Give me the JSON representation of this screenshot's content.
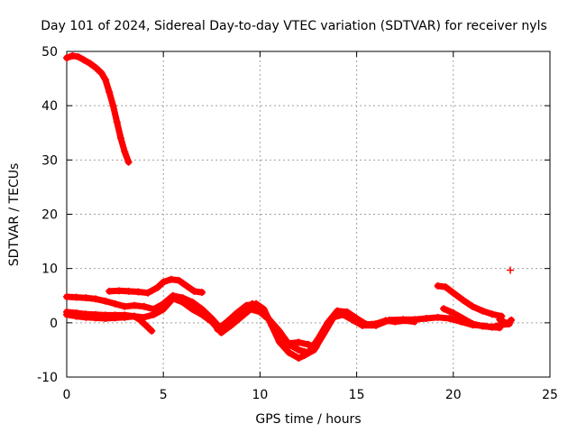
{
  "chart_data": {
    "type": "scatter",
    "title": "Day 101 of 2024, Sidereal Day-to-day VTEC variation (SDTVAR) for receiver nyls",
    "xlabel": "GPS time / hours",
    "ylabel": "SDTVAR / TECUs",
    "xlim": [
      0,
      25
    ],
    "ylim": [
      -10,
      50
    ],
    "xticks": [
      "0",
      "5",
      "10",
      "15",
      "20",
      "25"
    ],
    "yticks": [
      "-10",
      "0",
      "10",
      "20",
      "30",
      "40",
      "50"
    ],
    "grid": true,
    "marker": "+",
    "color": "#ff0000",
    "series": [
      {
        "name": "high-arc",
        "x": [
          0.0,
          0.3,
          0.6,
          0.9,
          1.2,
          1.5,
          1.8,
          2.0,
          2.2,
          2.4,
          2.6,
          2.8,
          3.0,
          3.2
        ],
        "y": [
          48.8,
          49.2,
          49.0,
          48.4,
          47.8,
          47.0,
          46.0,
          44.8,
          42.5,
          40.0,
          37.0,
          34.0,
          31.5,
          29.6
        ]
      },
      {
        "name": "track-a",
        "x": [
          0.0,
          0.5,
          1.0,
          1.5,
          2.0,
          2.5,
          3.0,
          3.5,
          4.0,
          4.5,
          5.0,
          5.5,
          6.0,
          6.5,
          7.0,
          7.5,
          8.0
        ],
        "y": [
          4.8,
          4.7,
          4.6,
          4.4,
          4.0,
          3.5,
          3.0,
          3.2,
          3.0,
          2.5,
          3.5,
          5.0,
          4.6,
          3.8,
          2.5,
          0.8,
          -1.2
        ]
      },
      {
        "name": "track-b",
        "x": [
          2.2,
          2.7,
          3.2,
          3.7,
          4.2,
          4.7,
          5.0,
          5.4,
          5.8,
          6.2,
          6.6,
          7.0
        ],
        "y": [
          5.8,
          5.9,
          5.8,
          5.7,
          5.5,
          6.5,
          7.5,
          8.0,
          7.8,
          6.8,
          5.8,
          5.6
        ]
      },
      {
        "name": "track-c",
        "x": [
          0.0,
          0.5,
          1.0,
          1.5,
          2.0,
          2.5,
          3.0,
          3.5,
          3.8,
          4.1,
          4.4
        ],
        "y": [
          2.0,
          1.8,
          1.6,
          1.5,
          1.4,
          1.4,
          1.4,
          1.2,
          0.5,
          -0.5,
          -1.5
        ]
      },
      {
        "name": "track-d",
        "x": [
          0.0,
          0.5,
          1.0,
          1.5,
          2.0,
          2.5,
          3.0,
          3.5,
          4.0,
          4.5,
          5.0,
          5.5,
          6.0,
          6.5,
          7.0,
          7.5,
          8.0
        ],
        "y": [
          1.5,
          1.2,
          1.0,
          0.9,
          0.8,
          0.9,
          1.0,
          1.2,
          1.0,
          1.5,
          2.5,
          4.5,
          3.8,
          2.5,
          1.5,
          0.2,
          -1.8
        ]
      },
      {
        "name": "track-e",
        "x": [
          7.8,
          8.3,
          8.8,
          9.3,
          9.8,
          10.2,
          10.6,
          11.0,
          11.5,
          12.0,
          12.3,
          12.8,
          13.3,
          13.8,
          14.3,
          14.8,
          15.3,
          16.0,
          16.7,
          17.4,
          18.0,
          18.6,
          19.2,
          19.8,
          20.4,
          21.0,
          21.6,
          22.0,
          22.5,
          22.9
        ],
        "y": [
          -1.2,
          0.2,
          1.8,
          3.2,
          3.5,
          2.5,
          -0.5,
          -3.5,
          -5.5,
          -6.5,
          -6.0,
          -5.0,
          -2.0,
          1.0,
          1.5,
          0.5,
          -0.5,
          -0.5,
          0.5,
          0.6,
          0.6,
          0.8,
          1.0,
          0.8,
          0.2,
          -0.4,
          -0.6,
          -0.8,
          -0.4,
          -0.2
        ]
      },
      {
        "name": "track-f",
        "x": [
          8.0,
          8.5,
          9.0,
          9.5,
          10.0,
          10.5,
          11.0,
          11.5,
          12.0,
          12.5,
          13.0,
          13.5,
          14.0,
          14.5,
          15.0,
          15.5,
          16.0,
          16.5,
          17.0,
          17.5,
          18.0
        ],
        "y": [
          -1.8,
          -0.5,
          1.0,
          2.5,
          2.0,
          0.5,
          -1.5,
          -4.0,
          -5.0,
          -5.5,
          -3.0,
          0.0,
          2.2,
          2.0,
          0.8,
          -0.3,
          -0.2,
          0.4,
          0.2,
          0.4,
          0.2
        ]
      },
      {
        "name": "track-g",
        "x": [
          9.6,
          10.0,
          10.4
        ],
        "y": [
          3.5,
          2.8,
          1.0
        ]
      },
      {
        "name": "track-h",
        "x": [
          11.5,
          12.0,
          12.5,
          12.9
        ],
        "y": [
          -3.8,
          -3.6,
          -4.0,
          -4.5
        ]
      },
      {
        "name": "track-i",
        "x": [
          19.2,
          19.6,
          20.0,
          20.5,
          21.0,
          21.5,
          22.0,
          22.5
        ],
        "y": [
          6.8,
          6.6,
          5.5,
          4.2,
          3.0,
          2.2,
          1.6,
          1.2
        ]
      },
      {
        "name": "track-j",
        "x": [
          19.5,
          20.0,
          20.5,
          21.0,
          21.5,
          22.0,
          22.4
        ],
        "y": [
          2.6,
          1.8,
          0.8,
          -0.2,
          -0.6,
          -0.8,
          -0.9
        ]
      },
      {
        "name": "track-k",
        "x": [
          22.4,
          22.6,
          22.8,
          23.0
        ],
        "y": [
          0.6,
          0.2,
          -0.2,
          0.5
        ]
      },
      {
        "name": "outlier",
        "x": [
          22.95
        ],
        "y": [
          9.7
        ]
      }
    ]
  }
}
